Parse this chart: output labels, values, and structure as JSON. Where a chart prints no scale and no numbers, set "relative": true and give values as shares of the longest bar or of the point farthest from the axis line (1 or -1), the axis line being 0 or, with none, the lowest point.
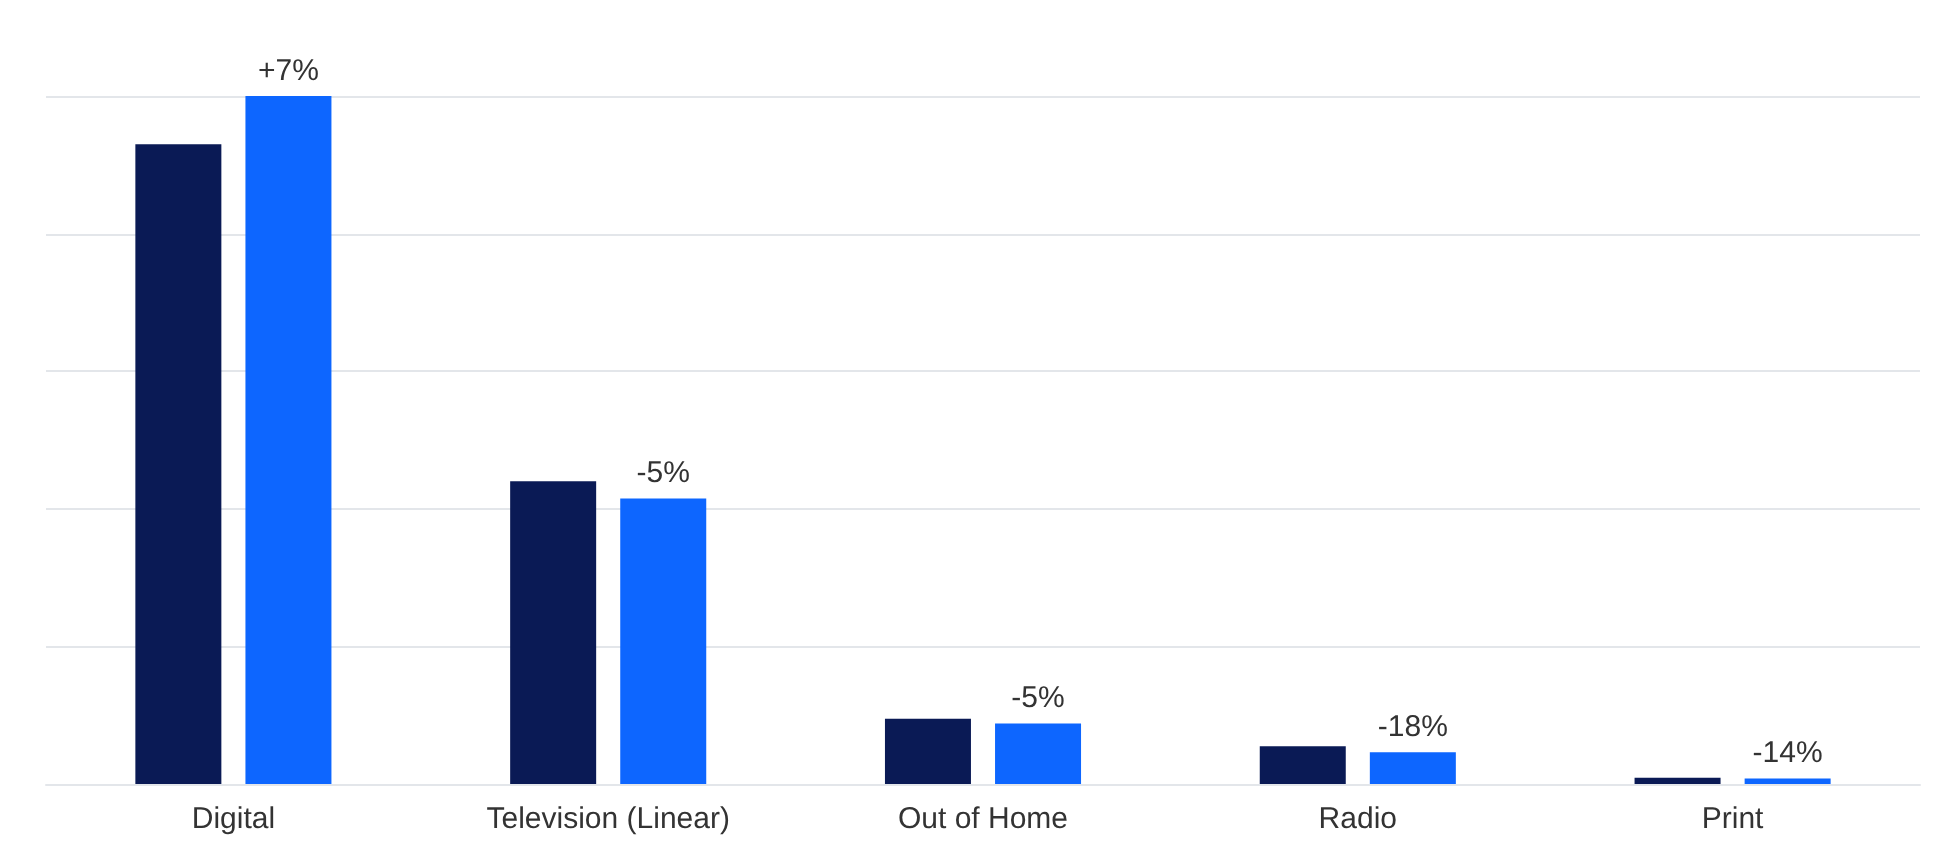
{
  "chart_data": {
    "type": "bar",
    "relative": true,
    "grid": "y",
    "categories": [
      "Digital",
      "Television (Linear)",
      "Out of Home",
      "Radio",
      "Print"
    ],
    "series": [
      {
        "color": "#0a1a55",
        "values": [
          0.93,
          0.44,
          0.095,
          0.055,
          0.009
        ]
      },
      {
        "color": "#0d66ff",
        "values": [
          1,
          0.415,
          0.088,
          0.046,
          0.008
        ]
      }
    ],
    "annotations": [
      "+7%",
      "-5%",
      "-5%",
      "-18%",
      "-14%"
    ]
  }
}
